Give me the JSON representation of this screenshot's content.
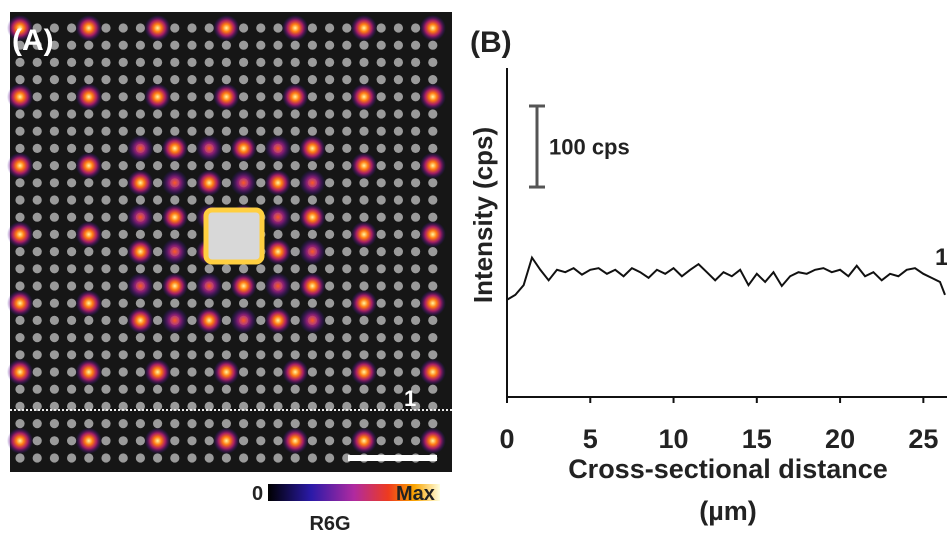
{
  "panel_a": {
    "label": "(A)",
    "colorbar": {
      "min_label": "0",
      "max_label": "Max",
      "title": "R6G"
    }
  },
  "chart_data": {
    "type": "line",
    "panel_label": "(B)",
    "ylabel": "Intensity (cps)",
    "xlabel": [
      "Cross-sectional distance",
      "(µm)"
    ],
    "x": [
      0,
      0.5,
      1,
      1.5,
      2,
      2.5,
      3,
      3.5,
      4,
      4.5,
      5,
      5.5,
      6,
      6.5,
      7,
      7.5,
      8,
      8.5,
      9,
      9.5,
      10,
      10.5,
      11,
      11.5,
      12,
      12.5,
      13,
      13.5,
      14,
      14.5,
      15,
      15.5,
      16,
      16.5,
      17,
      17.5,
      18,
      18.5,
      19,
      19.5,
      20,
      20.5,
      21,
      21.5,
      22,
      22.5,
      23,
      23.5,
      24,
      24.5,
      25,
      25.5,
      26,
      26.3
    ],
    "series": [
      {
        "name": "1",
        "color": "#111111",
        "values": [
          120,
          126,
          138,
          172,
          157,
          144,
          157,
          154,
          159,
          151,
          157,
          159,
          152,
          157,
          149,
          159,
          154,
          147,
          157,
          152,
          159,
          149,
          157,
          164,
          154,
          144,
          154,
          149,
          157,
          138,
          152,
          142,
          154,
          137,
          149,
          154,
          152,
          157,
          159,
          154,
          157,
          149,
          162,
          149,
          154,
          144,
          152,
          149,
          157,
          159,
          152,
          147,
          142,
          126
        ]
      }
    ],
    "xlim": [
      0,
      26.3
    ],
    "ylim": [
      0,
      406
    ],
    "xticks": [
      0,
      5,
      10,
      15,
      20,
      25
    ],
    "scale_bar": {
      "value": 100,
      "label": "100 cps"
    }
  }
}
